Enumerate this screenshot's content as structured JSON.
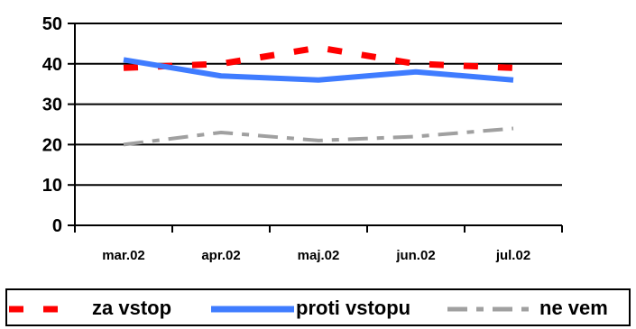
{
  "chart_data": {
    "type": "line",
    "categories": [
      "mar.02",
      "apr.02",
      "maj.02",
      "jun.02",
      "jul.02"
    ],
    "ylim": [
      0,
      50
    ],
    "yticks": [
      0,
      10,
      20,
      30,
      40,
      50
    ],
    "grid": true,
    "legend_position": "bottom",
    "series": [
      {
        "name": "za vstop",
        "values": [
          39,
          40,
          44,
          40,
          39
        ],
        "color": "#ff0000",
        "style": "dashed"
      },
      {
        "name": "proti vstopu",
        "values": [
          41,
          37,
          36,
          38,
          36
        ],
        "color": "#3f7cff",
        "style": "solid"
      },
      {
        "name": "ne vem",
        "values": [
          20,
          23,
          21,
          22,
          24
        ],
        "color": "#a0a0a0",
        "style": "dashdot"
      }
    ]
  }
}
